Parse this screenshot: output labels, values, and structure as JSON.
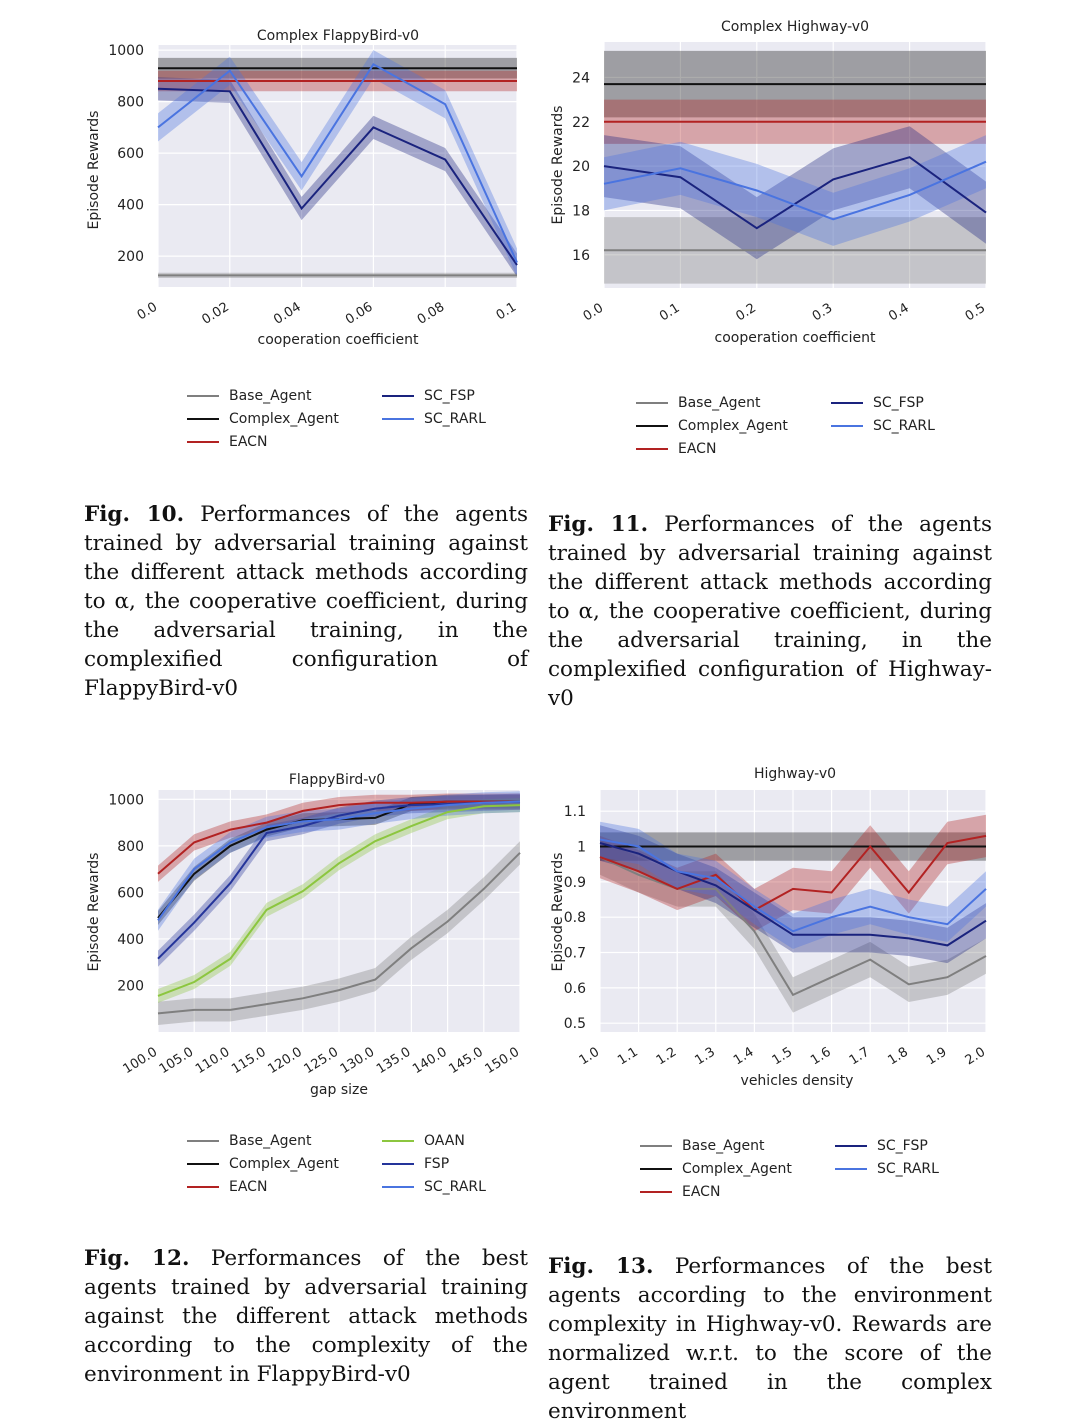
{
  "figures": [
    {
      "id": "fig10",
      "caption": {
        "label": "Fig. 10.",
        "text": "Performances of the agents trained by adversarial training against the different attack methods according to α, the cooperative coefficient, during the adversarial training, in the complexified configuration of FlappyBird-v0"
      }
    },
    {
      "id": "fig11",
      "caption": {
        "label": "Fig. 11.",
        "text": "Performances of the agents trained by adversarial training against the different attack methods according to α, the cooperative coefficient, during the adversarial training, in the complexified configuration of Highway-v0"
      }
    },
    {
      "id": "fig12",
      "caption": {
        "label": "Fig. 12.",
        "text": "Performances of the best agents trained by adversarial training against the different attack methods according to the complexity of the environment in FlappyBird-v0"
      }
    },
    {
      "id": "fig13",
      "caption": {
        "label": "Fig. 13.",
        "text": "Performances of the best agents according to the environment complexity in Highway-v0. Rewards are normalized w.r.t. to the score of the agent trained in the complex environment"
      }
    }
  ],
  "colors": {
    "Base_Agent": "#7f7f7f",
    "Complex_Agent": "#111111",
    "EACN": "#b22222",
    "SC_FSP": "#1a237e",
    "SC_RARL": "#4a74e0",
    "OAAN": "#8cc63f",
    "FSP": "#24349a",
    "plot_bg": "#eaeaf2"
  },
  "chart_data": [
    {
      "type": "line",
      "title": "Complex FlappyBird-v0",
      "xlabel": "cooperation coefficient",
      "ylabel": "Episode Rewards",
      "x": [
        0.0,
        0.02,
        0.04,
        0.06,
        0.08,
        0.1
      ],
      "x_tick_labels": [
        "0.0",
        "0.02",
        "0.04",
        "0.06",
        "0.08",
        "0.1"
      ],
      "y_ticks": [
        200,
        400,
        600,
        800,
        1000
      ],
      "xlim": [
        0.0,
        0.1
      ],
      "ylim": [
        80,
        1020
      ],
      "grid": true,
      "series": [
        {
          "name": "Base_Agent",
          "values": [
            125,
            125,
            125,
            125,
            125,
            125
          ],
          "band": 10
        },
        {
          "name": "Complex_Agent",
          "values": [
            930,
            930,
            930,
            930,
            930,
            930
          ],
          "band": 40
        },
        {
          "name": "EACN",
          "values": [
            880,
            880,
            880,
            880,
            880,
            880
          ],
          "band": 40
        },
        {
          "name": "SC_FSP",
          "values": [
            850,
            840,
            385,
            700,
            575,
            165
          ],
          "band": 45
        },
        {
          "name": "SC_RARL",
          "values": [
            700,
            920,
            510,
            945,
            790,
            175
          ],
          "band": 55
        }
      ]
    },
    {
      "type": "line",
      "title": "Complex Highway-v0",
      "xlabel": "cooperation coefficient",
      "ylabel": "Episode Rewards",
      "x": [
        0.0,
        0.1,
        0.2,
        0.3,
        0.4,
        0.5
      ],
      "x_tick_labels": [
        "0.0",
        "0.1",
        "0.2",
        "0.3",
        "0.4",
        "0.5"
      ],
      "y_ticks": [
        16,
        18,
        20,
        22,
        24
      ],
      "xlim": [
        0.0,
        0.5
      ],
      "ylim": [
        14.5,
        25.6
      ],
      "grid": true,
      "series": [
        {
          "name": "Base_Agent",
          "values": [
            16.2,
            16.2,
            16.2,
            16.2,
            16.2,
            16.2
          ],
          "band": 1.5
        },
        {
          "name": "Complex_Agent",
          "values": [
            23.7,
            23.7,
            23.7,
            23.7,
            23.7,
            23.7
          ],
          "band": 1.5
        },
        {
          "name": "EACN",
          "values": [
            22.0,
            22.0,
            22.0,
            22.0,
            22.0,
            22.0
          ],
          "band": 1.0
        },
        {
          "name": "SC_FSP",
          "values": [
            20.0,
            19.5,
            17.2,
            19.4,
            20.4,
            17.9
          ],
          "band": 1.4
        },
        {
          "name": "SC_RARL",
          "values": [
            19.2,
            19.9,
            18.9,
            17.6,
            18.7,
            20.2
          ],
          "band": 1.2
        }
      ]
    },
    {
      "type": "line",
      "title": "FlappyBird-v0",
      "xlabel": "gap size",
      "ylabel": "Episode Rewards",
      "x": [
        100,
        105,
        110,
        115,
        120,
        125,
        130,
        135,
        140,
        145,
        150
      ],
      "x_tick_labels": [
        "100.0",
        "105.0",
        "110.0",
        "115.0",
        "120.0",
        "125.0",
        "130.0",
        "135.0",
        "140.0",
        "145.0",
        "150.0"
      ],
      "y_ticks": [
        200,
        400,
        600,
        800,
        1000
      ],
      "xlim": [
        100,
        150
      ],
      "ylim": [
        0,
        1040
      ],
      "grid": true,
      "series": [
        {
          "name": "Base_Agent",
          "values": [
            80,
            95,
            95,
            120,
            145,
            180,
            225,
            360,
            475,
            615,
            770
          ],
          "band": 50
        },
        {
          "name": "Complex_Agent",
          "values": [
            490,
            680,
            800,
            870,
            910,
            915,
            920,
            980,
            990,
            990,
            990
          ],
          "band": 30
        },
        {
          "name": "EACN",
          "values": [
            680,
            815,
            870,
            900,
            950,
            975,
            985,
            985,
            990,
            990,
            990
          ],
          "band": 35
        },
        {
          "name": "OAAN",
          "values": [
            155,
            215,
            315,
            525,
            605,
            725,
            820,
            885,
            945,
            970,
            975
          ],
          "band": 30
        },
        {
          "name": "FSP",
          "values": [
            315,
            470,
            640,
            855,
            885,
            930,
            960,
            975,
            980,
            985,
            990
          ],
          "band": 35
        },
        {
          "name": "SC_RARL",
          "values": [
            480,
            700,
            815,
            880,
            905,
            915,
            940,
            960,
            975,
            985,
            990
          ],
          "band": 45
        }
      ]
    },
    {
      "type": "line",
      "title": "Highway-v0",
      "xlabel": "vehicles density",
      "ylabel": "Episode Rewards",
      "x": [
        1.0,
        1.1,
        1.2,
        1.3,
        1.4,
        1.5,
        1.6,
        1.7,
        1.8,
        1.9,
        2.0
      ],
      "x_tick_labels": [
        "1.0",
        "1.1",
        "1.2",
        "1.3",
        "1.4",
        "1.5",
        "1.6",
        "1.7",
        "1.8",
        "1.9",
        "2.0"
      ],
      "y_ticks": [
        0.5,
        0.6,
        0.7,
        0.8,
        0.9,
        1.0,
        1.1
      ],
      "xlim": [
        1.0,
        2.0
      ],
      "ylim": [
        0.475,
        1.16
      ],
      "grid": true,
      "series": [
        {
          "name": "Base_Agent",
          "values": [
            0.97,
            0.92,
            0.88,
            0.88,
            0.76,
            0.58,
            0.63,
            0.68,
            0.61,
            0.63,
            0.69
          ],
          "band": 0.05
        },
        {
          "name": "Complex_Agent",
          "values": [
            1.0,
            1.0,
            1.0,
            1.0,
            1.0,
            1.0,
            1.0,
            1.0,
            1.0,
            1.0,
            1.0
          ],
          "band": 0.04
        },
        {
          "name": "EACN",
          "values": [
            0.97,
            0.93,
            0.88,
            0.92,
            0.82,
            0.88,
            0.87,
            1.0,
            0.87,
            1.01,
            1.03
          ],
          "band": 0.06
        },
        {
          "name": "SC_FSP",
          "values": [
            1.01,
            0.98,
            0.93,
            0.89,
            0.82,
            0.75,
            0.75,
            0.75,
            0.74,
            0.72,
            0.79
          ],
          "band": 0.05
        },
        {
          "name": "SC_RARL",
          "values": [
            1.02,
            1.0,
            0.93,
            0.91,
            0.83,
            0.76,
            0.8,
            0.83,
            0.8,
            0.78,
            0.88
          ],
          "band": 0.05
        }
      ]
    }
  ],
  "legends": [
    {
      "left": [
        "Base_Agent",
        "Complex_Agent",
        "EACN"
      ],
      "right": [
        "SC_FSP",
        "SC_RARL"
      ]
    },
    {
      "left": [
        "Base_Agent",
        "Complex_Agent",
        "EACN"
      ],
      "right": [
        "SC_FSP",
        "SC_RARL"
      ]
    },
    {
      "left": [
        "Base_Agent",
        "Complex_Agent",
        "EACN"
      ],
      "right": [
        "OAAN",
        "FSP",
        "SC_RARL"
      ]
    },
    {
      "left": [
        "Base_Agent",
        "Complex_Agent",
        "EACN"
      ],
      "right": [
        "SC_FSP",
        "SC_RARL"
      ]
    }
  ]
}
